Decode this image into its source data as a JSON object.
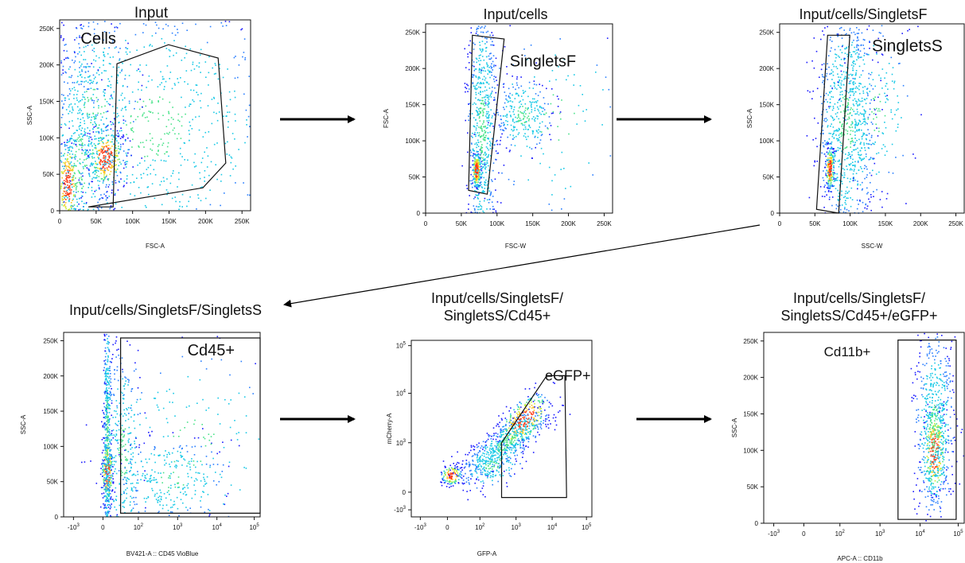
{
  "colors": {
    "density": [
      "#1a1aff",
      "#2a7fff",
      "#19c9e6",
      "#4be38a",
      "#c9ee34",
      "#ffc21a",
      "#ff3a14"
    ],
    "gate": "#111111",
    "axis": "#111111"
  },
  "chart_data": [
    {
      "type": "scatter",
      "title": "Input",
      "xlabel": "FSC-A",
      "ylabel": "SSC-A",
      "gate_label": "Cells",
      "xticks": [
        "0",
        "50K",
        "100K",
        "150K",
        "200K",
        "250K"
      ],
      "yticks": [
        "0",
        "50K",
        "100K",
        "150K",
        "200K",
        "250K"
      ],
      "xlim": [
        0,
        262144
      ],
      "ylim": [
        0,
        262144
      ]
    },
    {
      "type": "scatter",
      "title": "Input/cells",
      "xlabel": "FSC-W",
      "ylabel": "FSC-A",
      "gate_label": "SingletsF",
      "xticks": [
        "0",
        "50K",
        "100K",
        "150K",
        "200K",
        "250K"
      ],
      "yticks": [
        "0",
        "50K",
        "100K",
        "150K",
        "200K",
        "250K"
      ],
      "xlim": [
        0,
        262144
      ],
      "ylim": [
        0,
        262144
      ]
    },
    {
      "type": "scatter",
      "title": "Input/cells/SingletsF",
      "xlabel": "SSC-W",
      "ylabel": "SSC-A",
      "gate_label": "SingletsS",
      "xticks": [
        "0",
        "50K",
        "100K",
        "150K",
        "200K",
        "250K"
      ],
      "yticks": [
        "0",
        "50K",
        "100K",
        "150K",
        "200K",
        "250K"
      ],
      "xlim": [
        0,
        262144
      ],
      "ylim": [
        0,
        262144
      ]
    },
    {
      "type": "scatter",
      "title": "Input/cells/SingletsF/SingletsS",
      "xlabel": "BV421-A :: CD45 VioBlue",
      "ylabel": "SSC-A",
      "gate_label": "Cd45+",
      "xticks": [
        "-10",
        "0",
        "10",
        "10",
        "10",
        "10"
      ],
      "xtick_exp": [
        "3",
        "",
        "2",
        "3",
        "4",
        "5"
      ],
      "yticks": [
        "0",
        "50K",
        "100K",
        "150K",
        "200K",
        "250K"
      ],
      "xscale": "biexponential",
      "ylim": [
        0,
        262144
      ]
    },
    {
      "type": "scatter",
      "title": [
        "Input/cells/SingletsF/",
        "SingletsS/Cd45+"
      ],
      "xlabel": "GFP-A",
      "ylabel": "mCherry-A",
      "gate_label": "eGFP+",
      "xticks": [
        "-10",
        "0",
        "10",
        "10",
        "10",
        "10"
      ],
      "xtick_exp": [
        "3",
        "",
        "2",
        "3",
        "4",
        "5"
      ],
      "yticks": [
        "-10",
        "0",
        "10",
        "10",
        "10"
      ],
      "ytick_exp": [
        "3",
        "",
        "3",
        "4",
        "5"
      ],
      "xscale": "biexponential",
      "yscale": "biexponential"
    },
    {
      "type": "scatter",
      "title": [
        "Input/cells/SingletsF/",
        "SingletsS/Cd45+/eGFP+"
      ],
      "xlabel": "APC-A :: CD11b",
      "ylabel": "SSC-A",
      "gate_label": "Cd11b+",
      "xticks": [
        "-10",
        "0",
        "10",
        "10",
        "10",
        "10"
      ],
      "xtick_exp": [
        "3",
        "",
        "2",
        "3",
        "4",
        "5"
      ],
      "yticks": [
        "0",
        "50K",
        "100K",
        "150K",
        "200K",
        "250K"
      ],
      "xscale": "biexponential",
      "ylim": [
        0,
        262144
      ]
    }
  ]
}
